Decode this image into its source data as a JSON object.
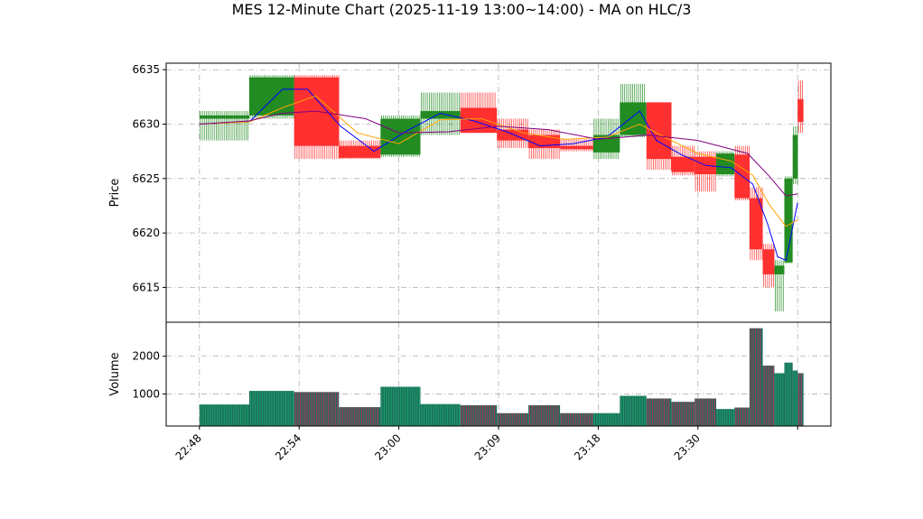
{
  "chart_data": {
    "type": "candlestick-with-volume",
    "title": "MES 12-Minute Chart (2025-11-19 13:00~14:00) - MA on HLC/3",
    "price_panel": {
      "ylabel": "Price",
      "ylim": [
        6611.8,
        6635.6
      ],
      "yticks": [
        6615,
        6620,
        6625,
        6630,
        6635
      ],
      "grid": true
    },
    "volume_panel": {
      "ylabel": "Volume",
      "ylim": [
        150,
        2900
      ],
      "yticks": [
        1000,
        2000
      ],
      "grid": true
    },
    "x_axis": {
      "tick_labels": [
        "22:48",
        "22:54",
        "23:00",
        "23:09",
        "23:18",
        "23:30",
        ""
      ],
      "tick_index": [
        0,
        6,
        12,
        18,
        24,
        30,
        36
      ],
      "xlim": [
        -2,
        38
      ]
    },
    "candles": [
      {
        "s": 0.0,
        "e": 3.0,
        "o": 6630.5,
        "h": 6631.2,
        "l": 6628.5,
        "c": 6630.8,
        "v": 720
      },
      {
        "s": 3.0,
        "e": 5.7,
        "o": 6630.8,
        "h": 6634.5,
        "l": 6630.5,
        "c": 6634.3,
        "v": 1080
      },
      {
        "s": 5.7,
        "e": 8.4,
        "o": 6634.3,
        "h": 6634.5,
        "l": 6626.8,
        "c": 6628.0,
        "v": 1050
      },
      {
        "s": 8.4,
        "e": 10.9,
        "o": 6628.0,
        "h": 6628.5,
        "l": 6626.8,
        "c": 6626.9,
        "v": 650
      },
      {
        "s": 10.9,
        "e": 13.3,
        "o": 6627.2,
        "h": 6630.8,
        "l": 6627.0,
        "c": 6630.5,
        "v": 1190
      },
      {
        "s": 13.3,
        "e": 15.7,
        "o": 6630.5,
        "h": 6632.9,
        "l": 6629.0,
        "c": 6631.2,
        "v": 730
      },
      {
        "s": 15.7,
        "e": 17.9,
        "o": 6631.5,
        "h": 6632.9,
        "l": 6629.2,
        "c": 6629.2,
        "v": 700
      },
      {
        "s": 17.9,
        "e": 19.8,
        "o": 6629.5,
        "h": 6630.5,
        "l": 6627.8,
        "c": 6628.5,
        "v": 490
      },
      {
        "s": 19.8,
        "e": 21.7,
        "o": 6629.0,
        "h": 6629.5,
        "l": 6626.8,
        "c": 6627.8,
        "v": 700
      },
      {
        "s": 21.7,
        "e": 23.7,
        "o": 6628.0,
        "h": 6628.6,
        "l": 6627.5,
        "c": 6627.7,
        "v": 490
      },
      {
        "s": 23.7,
        "e": 25.3,
        "o": 6627.4,
        "h": 6630.5,
        "l": 6626.8,
        "c": 6629.0,
        "v": 490
      },
      {
        "s": 25.3,
        "e": 26.9,
        "o": 6629.0,
        "h": 6633.7,
        "l": 6628.8,
        "c": 6632.0,
        "v": 950
      },
      {
        "s": 26.9,
        "e": 28.4,
        "o": 6632.0,
        "h": 6632.0,
        "l": 6625.8,
        "c": 6626.8,
        "v": 880
      },
      {
        "s": 28.4,
        "e": 29.8,
        "o": 6627.0,
        "h": 6628.0,
        "l": 6625.3,
        "c": 6625.6,
        "v": 790
      },
      {
        "s": 29.8,
        "e": 31.1,
        "o": 6627.0,
        "h": 6627.5,
        "l": 6623.8,
        "c": 6625.4,
        "v": 880
      },
      {
        "s": 31.1,
        "e": 32.2,
        "o": 6625.4,
        "h": 6627.5,
        "l": 6625.2,
        "c": 6627.3,
        "v": 600
      },
      {
        "s": 32.2,
        "e": 33.1,
        "o": 6627.2,
        "h": 6628.0,
        "l": 6623.0,
        "c": 6623.2,
        "v": 640
      },
      {
        "s": 33.1,
        "e": 33.9,
        "o": 6623.2,
        "h": 6624.2,
        "l": 6617.5,
        "c": 6618.5,
        "v": 2740
      },
      {
        "s": 33.9,
        "e": 34.6,
        "o": 6618.5,
        "h": 6619.0,
        "l": 6615.0,
        "c": 6616.2,
        "v": 1750
      },
      {
        "s": 34.6,
        "e": 35.2,
        "o": 6616.2,
        "h": 6617.5,
        "l": 6612.8,
        "c": 6617.0,
        "v": 1550
      },
      {
        "s": 35.2,
        "e": 35.7,
        "o": 6617.3,
        "h": 6625.2,
        "l": 6617.2,
        "c": 6625.0,
        "v": 1830
      },
      {
        "s": 35.7,
        "e": 36.0,
        "o": 6625.0,
        "h": 6629.8,
        "l": 6624.5,
        "c": 6629.0,
        "v": 1620
      },
      {
        "s": 36.0,
        "e": 36.35,
        "o": 6632.3,
        "h": 6634.0,
        "l": 6629.2,
        "c": 6630.2,
        "v": 1550
      }
    ],
    "series": [
      {
        "color": "#0000ff",
        "x": [
          0,
          3,
          5,
          6.5,
          8.5,
          10.5,
          12.5,
          14.5,
          16.5,
          18.5,
          20.5,
          22.5,
          24.5,
          26.5,
          27.5,
          29,
          30.5,
          32,
          33.3,
          34.2,
          34.8,
          35.3,
          36.0
        ],
        "y": [
          6630.0,
          6630.2,
          6633.2,
          6633.2,
          6629.8,
          6627.5,
          6629.4,
          6631.0,
          6630.3,
          6629.3,
          6628.0,
          6628.2,
          6628.8,
          6631.2,
          6628.5,
          6627.2,
          6626.2,
          6626.0,
          6624.5,
          6620.8,
          6617.8,
          6617.5,
          6622.8
        ]
      },
      {
        "color": "#ffa500",
        "x": [
          0,
          3,
          5,
          7,
          9.5,
          12,
          14.5,
          17,
          19.5,
          22,
          24.5,
          26.5,
          28,
          30,
          32,
          33.3,
          34.3,
          35.3,
          36.0
        ],
        "y": [
          6630.0,
          6630.2,
          6631.5,
          6632.6,
          6629.2,
          6628.2,
          6630.4,
          6630.5,
          6629.2,
          6628.6,
          6628.8,
          6630.0,
          6628.8,
          6627.3,
          6626.6,
          6625.3,
          6622.6,
          6620.6,
          6621.2
        ]
      },
      {
        "color": "#800080",
        "x": [
          0,
          3,
          5,
          7,
          10,
          12,
          15,
          18,
          21,
          24,
          27,
          30,
          33,
          34.3,
          35.3,
          36.0
        ],
        "y": [
          6630.0,
          6630.3,
          6631.0,
          6631.2,
          6630.5,
          6629.2,
          6629.3,
          6629.8,
          6629.5,
          6628.6,
          6629.0,
          6628.5,
          6627.3,
          6625.2,
          6623.4,
          6623.6
        ]
      }
    ],
    "colors": {
      "up": "#228b22",
      "down": "#ff3030",
      "volume_fill": "#1e6b5c",
      "volume_stripe_down": "#a83a5a",
      "volume_stripe_up": "#1aa06a",
      "grid": "#b0b0b0"
    }
  }
}
